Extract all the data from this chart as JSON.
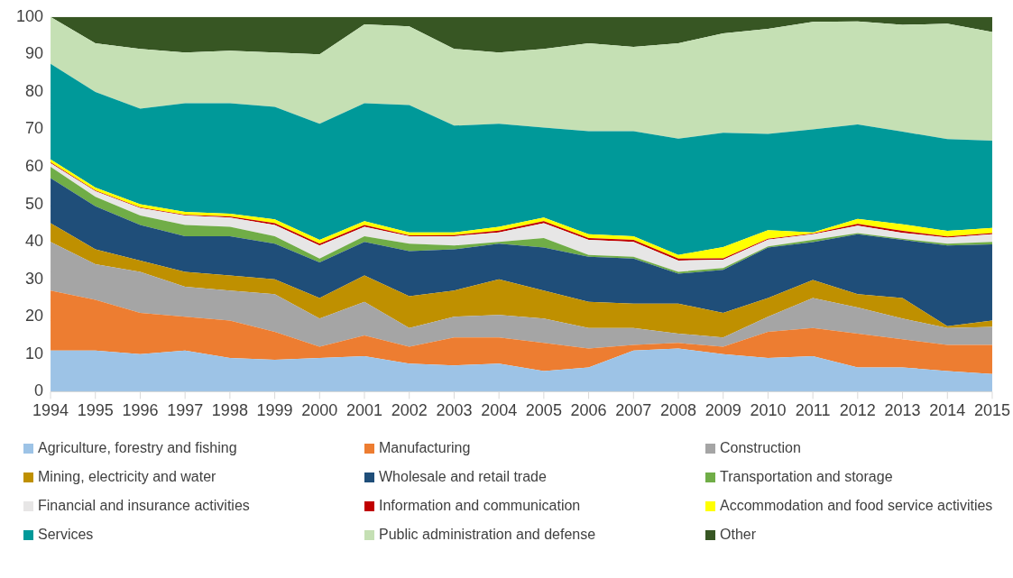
{
  "chart_data": {
    "type": "area",
    "stacked": true,
    "categories": [
      "1994",
      "1995",
      "1996",
      "1997",
      "1998",
      "1999",
      "2000",
      "2001",
      "2002",
      "2003",
      "2004",
      "2005",
      "2006",
      "2007",
      "2008",
      "2009",
      "2010",
      "2011",
      "2012",
      "2013",
      "2014",
      "2015"
    ],
    "ylim": [
      0,
      100
    ],
    "yticks": [
      0,
      10,
      20,
      30,
      40,
      50,
      60,
      70,
      80,
      90,
      100
    ],
    "grid": false,
    "legend": "bottom",
    "series": [
      {
        "name": "Agriculture, forestry and fishing",
        "color": "#9dc3e6",
        "values": [
          11,
          11,
          10,
          11,
          9,
          8.5,
          9,
          9.5,
          7.5,
          7,
          7.5,
          5.5,
          6.5,
          11,
          11.5,
          10,
          9,
          9.5,
          6.5,
          6.5,
          5.5,
          4.7
        ]
      },
      {
        "name": "Manufacturing",
        "color": "#ed7d31",
        "values": [
          16,
          13.5,
          11,
          9,
          10,
          7.5,
          3,
          5.5,
          4.5,
          7.5,
          7,
          7.5,
          5,
          1.5,
          1.5,
          2,
          7,
          7.5,
          9,
          7.5,
          7,
          7.8
        ]
      },
      {
        "name": "Construction",
        "color": "#a5a5a5",
        "values": [
          13,
          9.5,
          11,
          8,
          8,
          10,
          7.5,
          9,
          5,
          5.5,
          6,
          6.5,
          5.5,
          4.5,
          2.5,
          2.5,
          4,
          8,
          7,
          5.5,
          4.5,
          4.8
        ]
      },
      {
        "name": "Mining, electricity and water",
        "color": "#bf9000",
        "values": [
          5,
          4,
          3,
          4,
          4,
          4,
          5.5,
          7,
          8.5,
          7,
          9.5,
          7.5,
          7,
          6.5,
          8,
          6.5,
          5,
          4.8,
          3.5,
          5.5,
          0.5,
          1.7
        ]
      },
      {
        "name": "Wholesale and retail trade",
        "color": "#1f4e79",
        "values": [
          12,
          11.5,
          9.5,
          9.5,
          10.5,
          9.5,
          9.5,
          9,
          12,
          11,
          9.5,
          11.5,
          12,
          12,
          8,
          11.5,
          13.5,
          10.1,
          16,
          15.5,
          21.5,
          20.3
        ]
      },
      {
        "name": "Transportation and storage",
        "color": "#70ad47",
        "values": [
          3,
          2.5,
          2.5,
          3,
          2.5,
          2,
          1,
          1.5,
          2,
          1,
          0.5,
          2.5,
          0.5,
          0.5,
          0.5,
          0.5,
          0.3,
          0.6,
          0.3,
          0.3,
          0.5,
          0.7
        ]
      },
      {
        "name": "Financial and insurance activities",
        "color": "#e7e6e6",
        "values": [
          1,
          1.5,
          2,
          2.5,
          2.5,
          3,
          3.5,
          2.5,
          2,
          2.5,
          2.5,
          4,
          4,
          4,
          3,
          2.2,
          1.8,
          1.5,
          2,
          1.6,
          1.6,
          2
        ]
      },
      {
        "name": "Information and communication",
        "color": "#c00000",
        "values": [
          0.2,
          0.2,
          0.2,
          0.2,
          0.3,
          0.5,
          0.5,
          0.5,
          0.2,
          0.3,
          0.5,
          0.5,
          0.5,
          0.5,
          0.5,
          0.4,
          0.2,
          0.2,
          0.5,
          0.5,
          0.3,
          0.3
        ]
      },
      {
        "name": "Accommodation and food service activities",
        "color": "#ffff00",
        "values": [
          0.8,
          0.8,
          0.8,
          0.8,
          0.7,
          1,
          1,
          1,
          0.8,
          0.7,
          1,
          1,
          1,
          1,
          1,
          3,
          2.3,
          0.3,
          1.3,
          1.8,
          1.5,
          1.4
        ]
      },
      {
        "name": "Services",
        "color": "#009999",
        "values": [
          25.5,
          25.5,
          25.5,
          29,
          29.5,
          30,
          31,
          31.5,
          34,
          28.5,
          27.5,
          24,
          27.5,
          28,
          31,
          30.5,
          25.7,
          27.5,
          25.2,
          24.7,
          24.5,
          23.3
        ]
      },
      {
        "name": "Public administration and defense",
        "color": "#c5e0b4",
        "values": [
          12.5,
          13,
          16,
          13.5,
          14,
          14.5,
          18.5,
          21,
          21,
          20.5,
          19,
          21,
          23.5,
          22.5,
          25.5,
          26.5,
          28,
          28.7,
          27.5,
          28.5,
          30.8,
          29
        ]
      },
      {
        "name": "Other",
        "color": "#375623",
        "values": [
          0,
          7,
          8.5,
          9.5,
          9,
          9.5,
          10,
          2,
          2.5,
          8.5,
          9.5,
          8.5,
          7,
          8,
          7,
          4.4,
          3.2,
          1.3,
          1.2,
          2.1,
          1.8,
          4
        ]
      }
    ]
  }
}
